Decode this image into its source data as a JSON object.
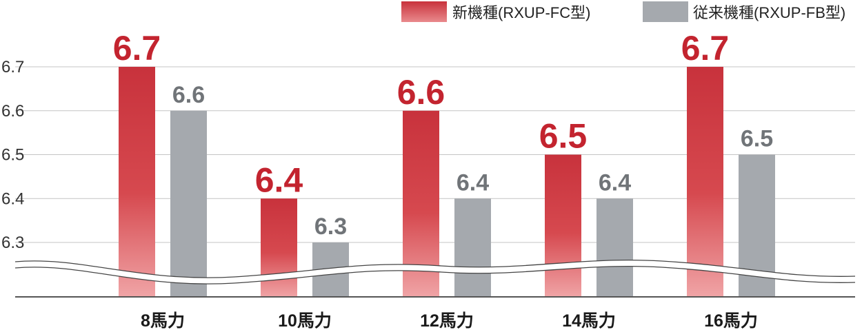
{
  "chart_data": {
    "type": "bar",
    "categories": [
      "8馬力",
      "10馬力",
      "12馬力",
      "14馬力",
      "16馬力"
    ],
    "series": [
      {
        "name": "新機種(RXUP-FC型)",
        "values": [
          6.7,
          6.4,
          6.6,
          6.5,
          6.7
        ],
        "value_labels": [
          "6.7",
          "6.4",
          "6.6",
          "6.5",
          "6.7"
        ],
        "color": "#c8323c"
      },
      {
        "name": "従来機種(RXUP-FB型)",
        "values": [
          6.6,
          6.3,
          6.4,
          6.4,
          6.5
        ],
        "value_labels": [
          "6.6",
          "6.3",
          "6.4",
          "6.4",
          "6.5"
        ],
        "color": "#a5a9ae"
      }
    ],
    "yticks": [
      "6.3",
      "6.4",
      "6.5",
      "6.6",
      "6.7"
    ],
    "ylim": [
      6.3,
      6.7
    ],
    "axis_break": true,
    "grid": true,
    "legend": "top-right"
  }
}
